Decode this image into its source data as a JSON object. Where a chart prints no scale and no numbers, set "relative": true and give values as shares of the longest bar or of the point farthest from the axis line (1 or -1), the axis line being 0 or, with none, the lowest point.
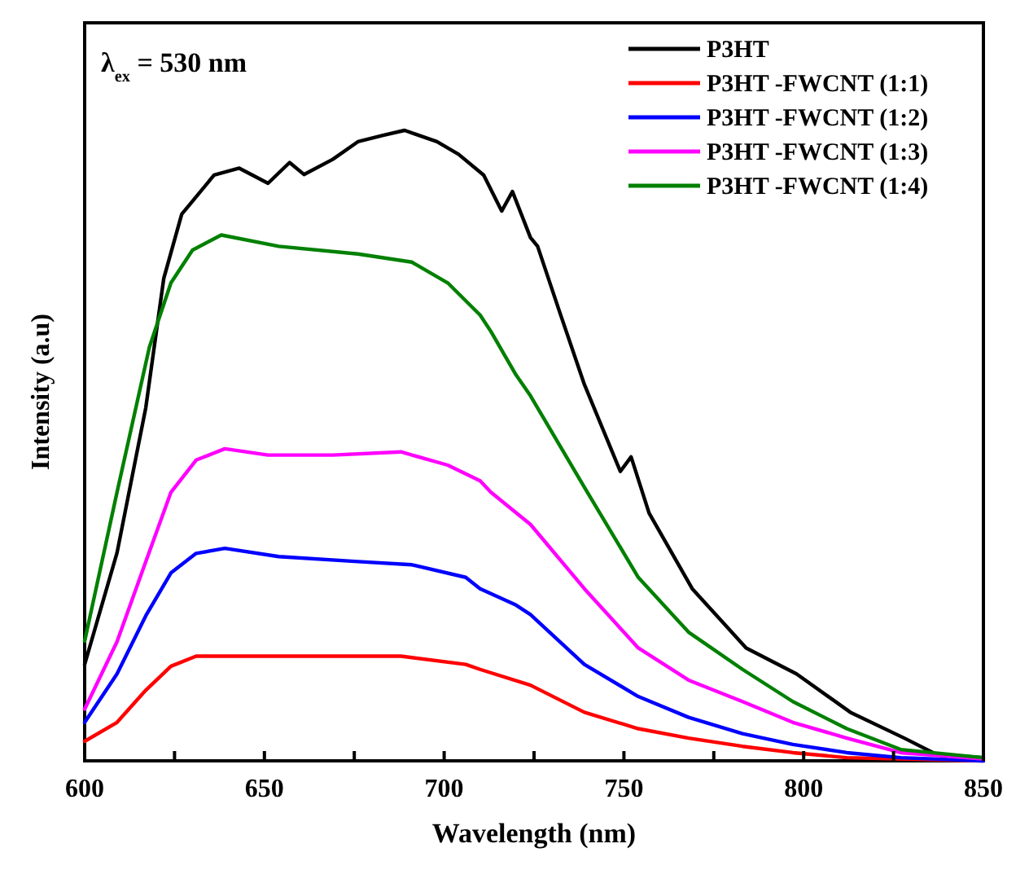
{
  "chart_data": {
    "type": "line",
    "relative": true,
    "xlabel": "Wavelength (nm)",
    "ylabel": "Intensity (a.u)",
    "annotations": [
      "λ$_{ex}$ = 530 nm"
    ],
    "legend": "top right",
    "grid": false,
    "marker": "none",
    "line_style": "solid",
    "xlim": [
      600,
      850
    ],
    "xticks": [
      600,
      {
        "value": 625,
        "label": null
      },
      650,
      {
        "value": 675,
        "label": null
      },
      700,
      {
        "value": 725,
        "label": null
      },
      750,
      {
        "value": 775,
        "label": null
      },
      800,
      {
        "value": 825,
        "label": null
      },
      850
    ],
    "series": [
      {
        "name": "P3HT",
        "color": "#000000",
        "x": [
          600,
          609,
          617,
          622,
          627,
          636,
          643,
          651,
          657,
          661,
          669,
          676,
          683,
          689,
          698,
          704,
          711,
          716,
          719,
          724,
          726,
          732,
          739,
          749,
          752,
          757,
          769,
          784,
          798,
          813,
          828,
          837,
          850
        ],
        "values": [
          0.153,
          0.33,
          0.56,
          0.765,
          0.867,
          0.929,
          0.94,
          0.916,
          0.949,
          0.93,
          0.954,
          0.982,
          0.992,
          1.0,
          0.982,
          0.962,
          0.929,
          0.872,
          0.903,
          0.83,
          0.816,
          0.714,
          0.597,
          0.459,
          0.482,
          0.393,
          0.273,
          0.179,
          0.138,
          0.077,
          0.036,
          0.01,
          0.005
        ]
      },
      {
        "name": "P3HT -FWCNT (1:1)",
        "color": "#ff0000",
        "x": [
          600,
          609,
          617,
          624,
          631,
          654,
          688,
          706,
          710,
          724,
          739,
          754,
          768,
          783,
          797,
          812,
          850
        ],
        "values": [
          0.031,
          0.061,
          0.112,
          0.15,
          0.166,
          0.166,
          0.166,
          0.153,
          0.145,
          0.12,
          0.077,
          0.051,
          0.036,
          0.023,
          0.013,
          0.005,
          0
        ]
      },
      {
        "name": "P3HT -FWCNT (1:2)",
        "color": "#0000ff",
        "x": [
          600,
          609,
          617,
          624,
          631,
          639,
          654,
          676,
          691,
          706,
          710,
          720,
          724,
          739,
          754,
          768,
          783,
          797,
          812,
          827,
          850
        ],
        "values": [
          0.061,
          0.138,
          0.23,
          0.298,
          0.329,
          0.337,
          0.324,
          0.316,
          0.311,
          0.291,
          0.273,
          0.247,
          0.232,
          0.153,
          0.102,
          0.069,
          0.043,
          0.026,
          0.013,
          0.005,
          0
        ]
      },
      {
        "name": "P3HT -FWCNT (1:3)",
        "color": "#ff00ff",
        "x": [
          600,
          609,
          617,
          624,
          631,
          639,
          651,
          669,
          688,
          701,
          710,
          713,
          724,
          739,
          754,
          768,
          783,
          797,
          812,
          827,
          850
        ],
        "values": [
          0.082,
          0.189,
          0.316,
          0.426,
          0.477,
          0.495,
          0.485,
          0.485,
          0.49,
          0.469,
          0.444,
          0.426,
          0.375,
          0.273,
          0.179,
          0.128,
          0.094,
          0.061,
          0.036,
          0.013,
          0.003
        ]
      },
      {
        "name": "P3HT -FWCNT (1:4)",
        "color": "#008000",
        "x": [
          600,
          609,
          618,
          624,
          630,
          638,
          654,
          676,
          691,
          701,
          710,
          713,
          720,
          724,
          739,
          754,
          768,
          783,
          797,
          812,
          827,
          850
        ],
        "values": [
          0.19,
          0.426,
          0.656,
          0.758,
          0.81,
          0.834,
          0.816,
          0.804,
          0.791,
          0.758,
          0.707,
          0.681,
          0.612,
          0.579,
          0.434,
          0.291,
          0.204,
          0.145,
          0.094,
          0.051,
          0.018,
          0.005
        ]
      }
    ]
  }
}
